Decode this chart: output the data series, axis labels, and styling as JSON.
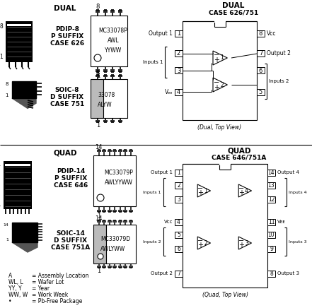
{
  "bg_color": "#ffffff",
  "dual_title": "DUAL",
  "dual_case_title": "DUAL",
  "dual_case_subtitle": "CASE 626/751",
  "quad_title": "QUAD",
  "quad_case_title": "QUAD",
  "quad_case_subtitle": "CASE 646/751A",
  "pdip8": [
    "PDIP-8",
    "P SUFFIX",
    "CASE 626"
  ],
  "soic8": [
    "SOIC-8",
    "D SUFFIX",
    "CASE 751"
  ],
  "pdip14": [
    "PDIP-14",
    "P SUFFIX",
    "CASE 646"
  ],
  "soic14": [
    "SOIC-14",
    "D SUFFIX",
    "CASE 751A"
  ],
  "ic8p_text": [
    "MC33078P",
    "AWL",
    "YYWW"
  ],
  "ic8d_text": [
    "33078",
    "ALYW"
  ],
  "ic14p_text": [
    "MC33079P",
    "AWLYYWW"
  ],
  "ic14d_text": [
    "MC33079D",
    "AWLYWW"
  ],
  "dual_note": "(Dual, Top View)",
  "quad_note": "(Quad, Top View)",
  "legend": [
    [
      "A",
      "= Assembly Location"
    ],
    [
      "WL, L",
      "= Wafer Lot"
    ],
    [
      "YY, Y",
      "= Year"
    ],
    [
      "WW, W",
      "= Work Week"
    ],
    [
      "•",
      "= Pb-Free Package"
    ]
  ]
}
